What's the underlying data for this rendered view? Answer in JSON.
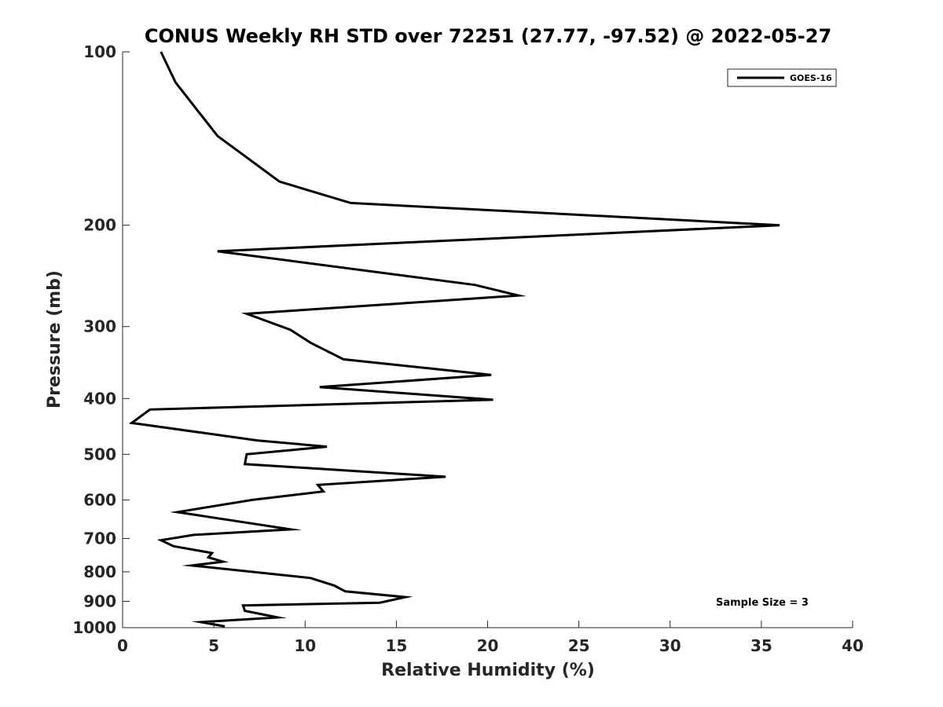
{
  "chart_data": {
    "type": "line",
    "title": "CONUS Weekly RH STD over 72251 (27.77, -97.52) @ 2022-05-27",
    "xlabel": "Relative Humidity (%)",
    "ylabel": "Pressure (mb)",
    "xlim": [
      0,
      40
    ],
    "ylim": [
      100,
      1000
    ],
    "yscale": "log",
    "yreversed": true,
    "xticks": [
      0,
      5,
      10,
      15,
      20,
      25,
      30,
      35,
      40
    ],
    "xtick_labels": [
      "0",
      "5",
      "10",
      "15",
      "20",
      "25",
      "30",
      "35",
      "40"
    ],
    "yticks": [
      100,
      200,
      300,
      400,
      500,
      600,
      700,
      800,
      900,
      1000
    ],
    "ytick_labels": [
      "100",
      "200",
      "300",
      "400",
      "500",
      "600",
      "700",
      "800",
      "900",
      "1000"
    ],
    "legend": {
      "placement": "top-right",
      "entries": [
        "GOES-16"
      ]
    },
    "annotation": "Sample Size = 3",
    "annotation_placement": "bottom-right",
    "series": [
      {
        "name": "GOES-16",
        "color": "#000000",
        "x": [
          2.1,
          2.9,
          5.2,
          8.6,
          12.5,
          36.0,
          5.2,
          19.3,
          21.7,
          6.8,
          9.2,
          10.3,
          12.1,
          20.2,
          10.8,
          20.3,
          1.5,
          0.5,
          7.4,
          11.2,
          6.8,
          6.7,
          17.7,
          10.7,
          11.0,
          7.1,
          3.0,
          6.5,
          9.2,
          3.9,
          2.1,
          2.8,
          4.9,
          4.7,
          5.5,
          3.8,
          10.3,
          11.6,
          12.2,
          15.5,
          14.1,
          6.6,
          6.7,
          8.5,
          4.3,
          5.6
        ],
        "y": [
          100,
          113,
          140,
          168,
          183,
          200,
          222,
          254,
          265,
          285,
          304,
          320,
          342,
          364,
          382,
          402,
          418,
          441,
          473,
          485,
          500,
          520,
          547,
          565,
          580,
          600,
          630,
          655,
          675,
          690,
          705,
          722,
          742,
          755,
          768,
          780,
          820,
          845,
          865,
          885,
          905,
          915,
          935,
          960,
          978,
          995
        ]
      }
    ]
  }
}
